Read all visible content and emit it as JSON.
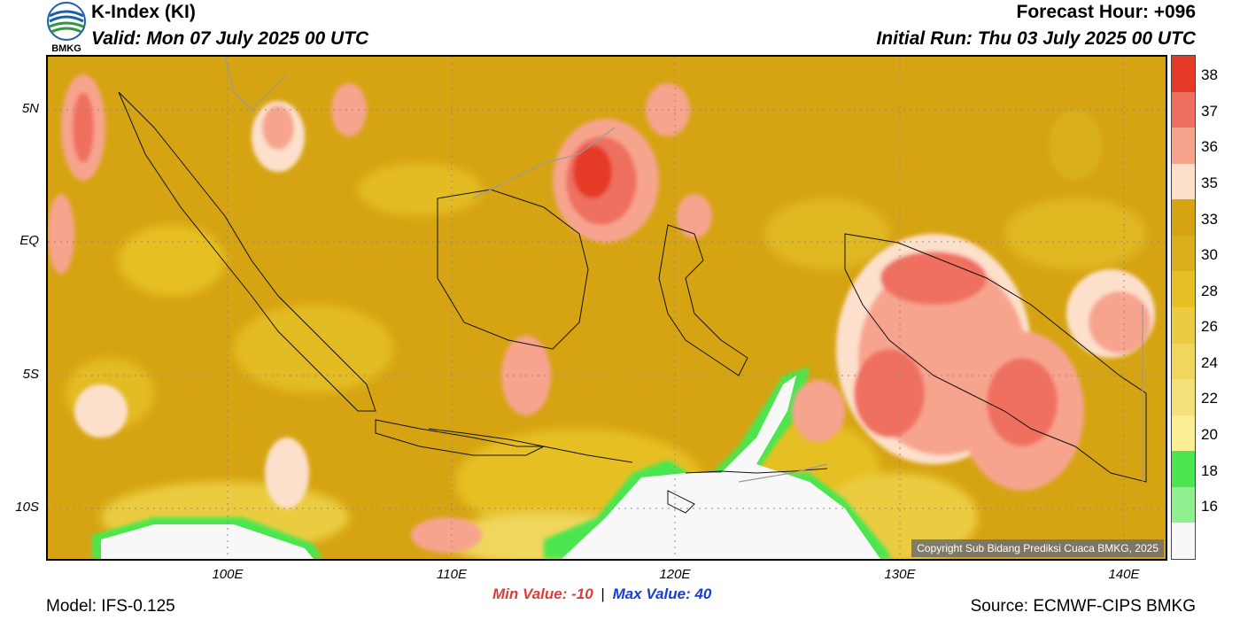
{
  "header": {
    "title": "K-Index (KI)",
    "valid": "Valid: Mon 07 July 2025 00 UTC",
    "forecast_hour": "Forecast Hour: +096",
    "initial_run": "Initial Run: Thu 03 July 2025 00 UTC",
    "logo_text": "BMKG"
  },
  "map": {
    "lat_labels": [
      "5N",
      "EQ",
      "5S",
      "10S"
    ],
    "lon_labels": [
      "100E",
      "110E",
      "120E",
      "130E",
      "140E"
    ],
    "copyright": "Copyright Sub Bidang Prediksi Cuaca BMKG, 2025",
    "base_color": "#d6a413"
  },
  "colorbar": {
    "labels": [
      "38",
      "37",
      "36",
      "35",
      "33",
      "30",
      "28",
      "26",
      "24",
      "22",
      "20",
      "18",
      "16"
    ],
    "colors": [
      "#e53a28",
      "#f07060",
      "#f7a48e",
      "#fde0cc",
      "#d6a413",
      "#d9ae1c",
      "#e6c024",
      "#ebcc40",
      "#f0d65c",
      "#f5e07a",
      "#fbef96",
      "#4ce650",
      "#8ef08e",
      "#f8f8f8"
    ]
  },
  "stats": {
    "min_label": "Min Value: -10",
    "separator": "|",
    "max_label": "Max Value:  40",
    "min_color": "#e53a3a",
    "max_color": "#1c3cd8"
  },
  "footer": {
    "model": "Model: IFS-0.125",
    "source": "Source: ECMWF-CIPS BMKG"
  }
}
